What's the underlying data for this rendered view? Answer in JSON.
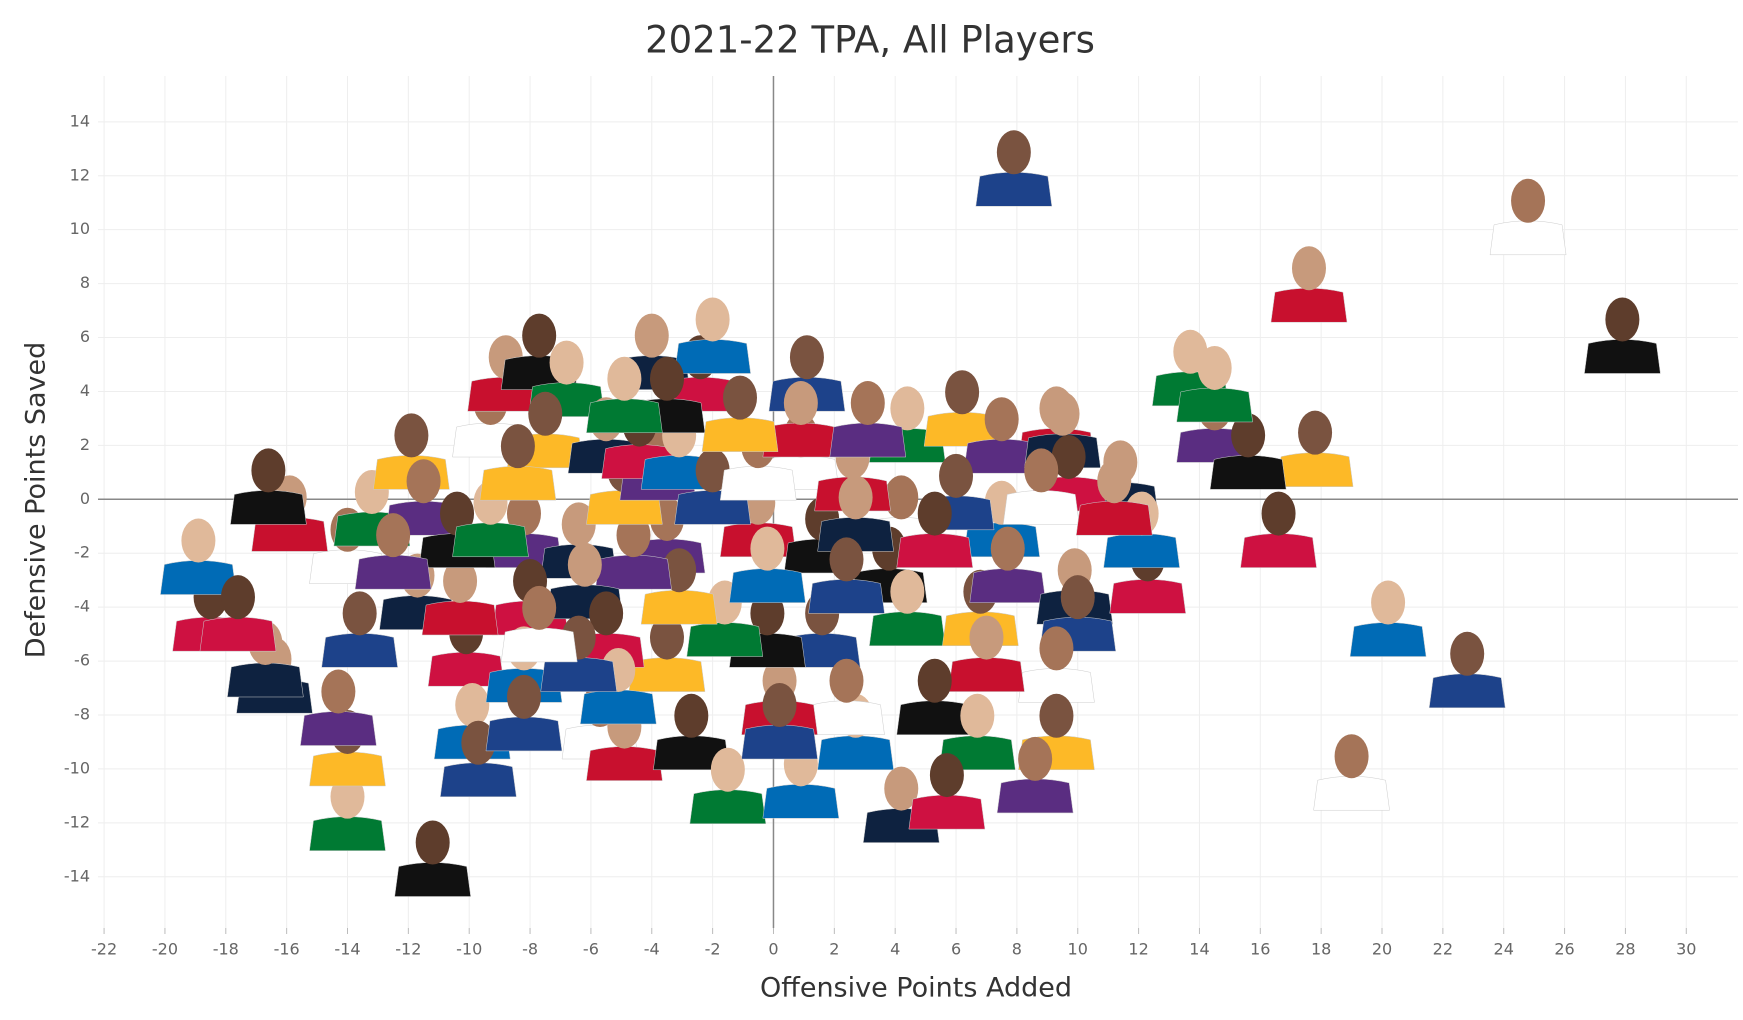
{
  "chart_data": {
    "type": "scatter",
    "title": "2021-22 TPA, All Players",
    "x_label": "Offensive Points Added",
    "y_label": "Defensive Points Saved",
    "xlim": [
      -22.2,
      31.7
    ],
    "ylim": [
      -15.9,
      15.7
    ],
    "xticks": [
      -22,
      -20,
      -18,
      -16,
      -14,
      -12,
      -10,
      -8,
      -6,
      -4,
      -2,
      0,
      2,
      4,
      6,
      8,
      10,
      12,
      14,
      16,
      18,
      20,
      22,
      24,
      26,
      28,
      30
    ],
    "yticks": [
      -14,
      -12,
      -10,
      -8,
      -6,
      -4,
      -2,
      0,
      2,
      4,
      6,
      8,
      10,
      12,
      14
    ],
    "grid": true,
    "x": [
      7.9,
      24.8,
      17.6,
      27.9,
      13.7,
      17.8,
      14.5,
      11.4,
      16.6,
      20.2,
      22.8,
      19.0,
      9.3,
      -11.2,
      -14.0,
      -14.0,
      -14.3,
      -16.4,
      -18.5,
      -18.9,
      -13.6,
      -14.0,
      -15.9,
      -16.6,
      -13.2,
      -11.9,
      -11.5,
      -11.7,
      -10.1,
      -9.9,
      -9.7,
      -9.3,
      -8.8,
      -7.7,
      -6.8,
      -7.5,
      -8.2,
      -6.4,
      -8.0,
      -8.2,
      -8.2,
      -5.7,
      -4.9,
      -2.7,
      -1.5,
      -3.5,
      -3.5,
      -4.0,
      -2.4,
      -2.0,
      1.1,
      0.9,
      -0.5,
      1.6,
      4.4,
      6.2,
      7.5,
      9.5,
      9.7,
      7.5,
      6.0,
      4.2,
      2.6,
      3.8,
      4.4,
      6.8,
      7.7,
      9.9,
      12.3,
      12.1,
      10.0,
      9.3,
      7.0,
      5.3,
      6.7,
      9.3,
      8.6,
      4.2,
      5.7,
      2.7,
      1.6,
      2.4,
      0.2,
      -0.2,
      -1.6,
      -3.1,
      -4.6,
      -6.2,
      -5.5,
      -5.1,
      -6.4,
      -7.7,
      -10.3,
      -10.4,
      -9.3,
      -4.9,
      -3.8,
      -5.5,
      -4.4,
      -3.1,
      -2.0,
      -0.5,
      0.9,
      -3.5,
      -4.9,
      -1.1,
      3.1,
      2.7,
      5.3,
      -0.2,
      2.4,
      8.8,
      11.2,
      15.6,
      14.5,
      -8.4,
      -12.5,
      -16.7,
      -17.6,
      0.9,
      0.2
    ],
    "y": [
      12.5,
      10.7,
      8.2,
      6.3,
      5.1,
      2.1,
      3.0,
      1.0,
      -0.9,
      -4.2,
      -6.1,
      -9.9,
      3.0,
      -13.1,
      -11.4,
      -9.0,
      -7.5,
      -6.3,
      -4.0,
      -1.9,
      -4.6,
      -1.5,
      -0.3,
      0.7,
      -0.1,
      2.0,
      0.3,
      -3.2,
      -5.3,
      -8.0,
      -9.4,
      3.2,
      4.9,
      5.7,
      4.7,
      2.8,
      -0.9,
      -1.3,
      -3.4,
      -5.9,
      -7.7,
      -8.0,
      -8.8,
      -8.4,
      -10.4,
      -5.5,
      -1.1,
      5.7,
      4.9,
      6.3,
      4.9,
      2.0,
      -0.5,
      -1.1,
      3.0,
      3.6,
      2.6,
      2.8,
      1.2,
      -0.5,
      0.5,
      -0.3,
      1.2,
      -2.2,
      -3.8,
      -3.8,
      -2.2,
      -3.0,
      -2.6,
      -0.9,
      -4.0,
      -5.9,
      -5.5,
      -7.1,
      -8.4,
      -8.4,
      -10.0,
      -11.1,
      -10.6,
      -8.4,
      -4.6,
      -7.1,
      -7.1,
      -4.6,
      -4.2,
      -3.0,
      -1.7,
      -2.8,
      -4.6,
      -6.7,
      -5.5,
      -4.4,
      -3.4,
      -0.9,
      -0.5,
      0.7,
      1.6,
      2.6,
      2.4,
      2.0,
      0.7,
      1.6,
      3.2,
      4.1,
      4.1,
      3.4,
      3.2,
      -0.3,
      -0.9,
      -2.2,
      -2.6,
      0.7,
      0.3,
      2.0,
      4.5,
      1.6,
      -1.7,
      -5.7,
      -4.0,
      -10.2,
      -8.0
    ]
  }
}
